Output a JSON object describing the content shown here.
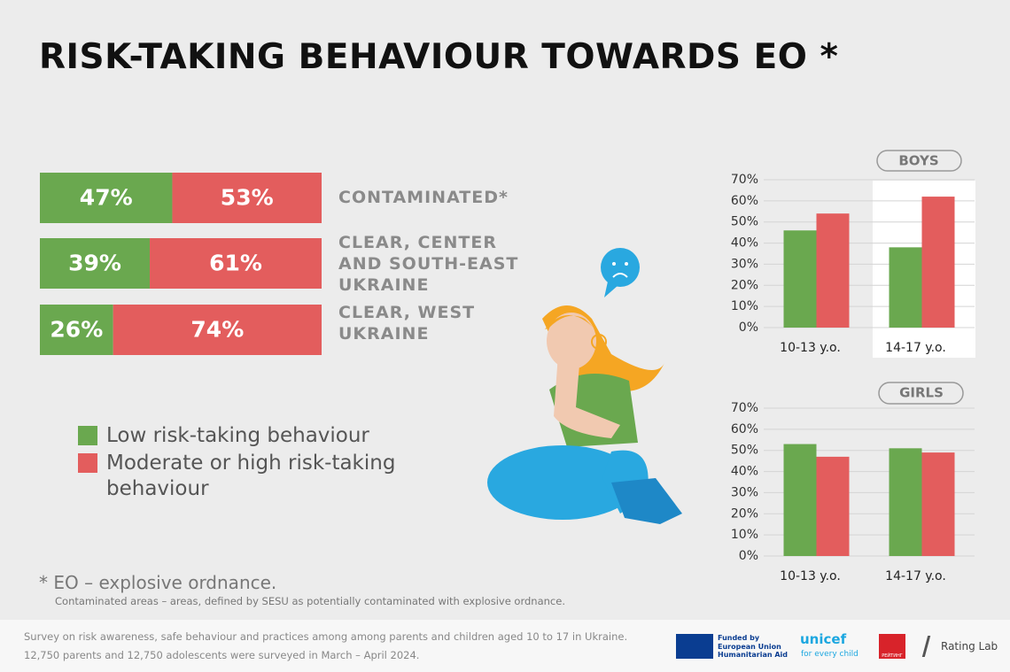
{
  "title": "RISK-TAKING BEHAVIOUR TOWARDS EO *",
  "chart_data": [
    {
      "type": "stacked-bar-h",
      "categories": [
        "CONTAMINATED*",
        "CLEAR, CENTER AND SOUTH-EAST UKRAINE",
        "CLEAR, WEST UKRAINE"
      ],
      "xlim": [
        0,
        100
      ],
      "series": [
        {
          "name": "Low risk-taking behaviour",
          "color": "#6aa84f",
          "values": [
            47,
            39,
            26
          ],
          "value_labels": [
            "47%",
            "39%",
            "26%"
          ]
        },
        {
          "name": "Moderate or high risk-taking behaviour",
          "color": "#e35d5d",
          "values": [
            53,
            61,
            74
          ],
          "value_labels": [
            "53%",
            "61%",
            "74%"
          ]
        }
      ]
    },
    {
      "type": "bar",
      "title": "BOYS",
      "categories": [
        "10-13 y.o.",
        "14-17 y.o."
      ],
      "series": [
        {
          "color": "#6aa84f",
          "values": [
            46,
            38
          ]
        },
        {
          "color": "#e35d5d",
          "values": [
            54,
            62
          ]
        }
      ],
      "ylim": [
        0,
        70
      ],
      "yticks": [
        {
          "value": 0,
          "label": "0%"
        },
        {
          "value": 10,
          "label": "10%"
        },
        {
          "value": 20,
          "label": "20%"
        },
        {
          "value": 30,
          "label": "30%"
        },
        {
          "value": 40,
          "label": "40%"
        },
        {
          "value": 50,
          "label": "50%"
        },
        {
          "value": 60,
          "label": "60%"
        },
        {
          "value": 70,
          "label": "70%"
        }
      ],
      "grid": true
    },
    {
      "type": "bar",
      "title": "GIRLS",
      "categories": [
        "10-13 y.o.",
        "14-17 y.o."
      ],
      "series": [
        {
          "color": "#6aa84f",
          "values": [
            53,
            51
          ]
        },
        {
          "color": "#e35d5d",
          "values": [
            47,
            49
          ]
        }
      ],
      "ylim": [
        0,
        70
      ],
      "yticks": [
        {
          "value": 0,
          "label": "0%"
        },
        {
          "value": 10,
          "label": "10%"
        },
        {
          "value": 20,
          "label": "20%"
        },
        {
          "value": 30,
          "label": "30%"
        },
        {
          "value": 40,
          "label": "40%"
        },
        {
          "value": 50,
          "label": "50%"
        },
        {
          "value": 60,
          "label": "60%"
        },
        {
          "value": 70,
          "label": "70%"
        }
      ],
      "grid": true
    }
  ],
  "footnote": "* EO – explosive ordnance.",
  "note": "Contaminated areas – areas, defined by SESU as potentially contaminated with explosive ordnance.",
  "footer": {
    "lines": [
      "Survey on risk awareness, safe behaviour and practices among among parents and children aged 10 to 17 in Ukraine.",
      "12,750 parents and 12,750 adolescents were surveyed in March – April 2024."
    ],
    "eu": [
      "Funded by",
      "European Union",
      "Humanitarian Aid"
    ],
    "unicef": "unicef",
    "unicef_tag": "for every child",
    "rating": "РЕЙТИНГ",
    "ratinglab": "Rating Lab"
  }
}
